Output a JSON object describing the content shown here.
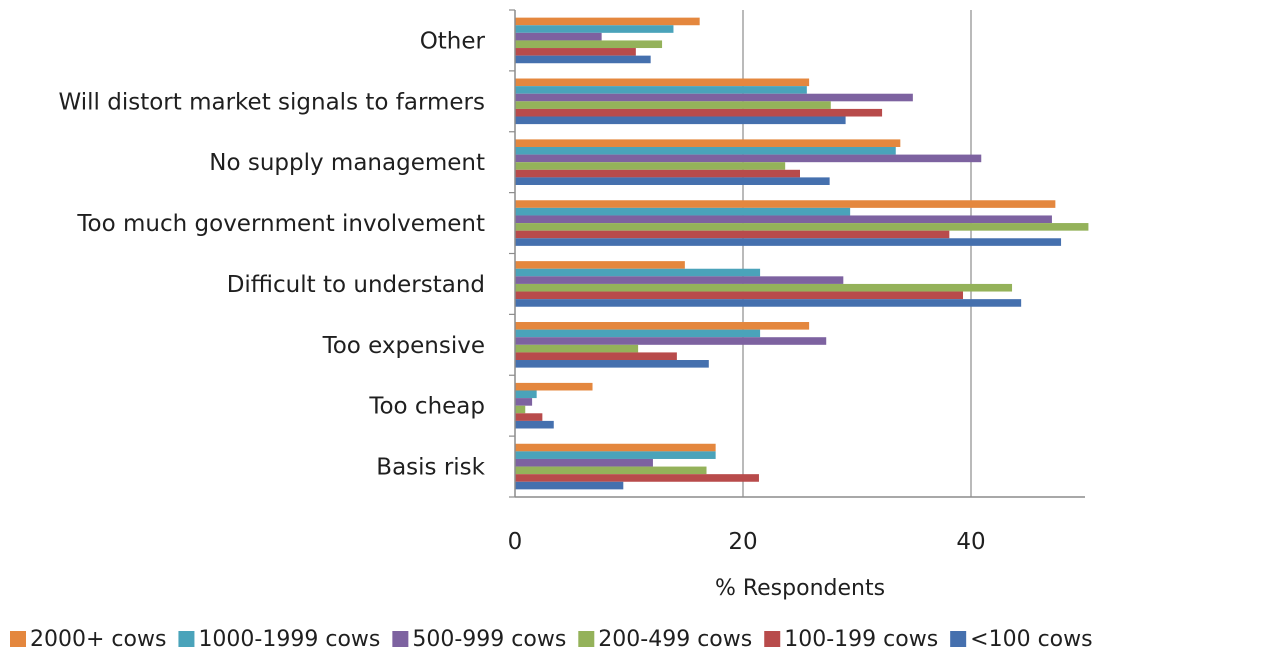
{
  "chart_data": {
    "type": "bar",
    "orientation": "horizontal",
    "categories": [
      "Basis risk",
      "Too cheap",
      "Too expensive",
      "Difficult to understand",
      "Too much government involvement",
      "No supply management",
      "Will distort market signals to farmers",
      "Other"
    ],
    "series": [
      {
        "name": "2000+ cows",
        "color": "#E4873E",
        "values": [
          17.6,
          6.8,
          25.8,
          14.9,
          47.4,
          33.8,
          25.8,
          16.2
        ]
      },
      {
        "name": "1000-1999 cows",
        "color": "#4AA3BA",
        "values": [
          17.6,
          1.9,
          21.5,
          21.5,
          29.4,
          33.4,
          25.6,
          13.9
        ]
      },
      {
        "name": "500-999 cows",
        "color": "#7D62A0",
        "values": [
          12.1,
          1.5,
          27.3,
          28.8,
          47.1,
          40.9,
          34.9,
          7.6
        ]
      },
      {
        "name": "200-499 cows",
        "color": "#94B25A",
        "values": [
          16.8,
          0.9,
          10.8,
          43.6,
          50.3,
          23.7,
          27.7,
          12.9
        ]
      },
      {
        "name": "100-199 cows",
        "color": "#B84B4B",
        "values": [
          21.4,
          2.4,
          14.2,
          39.3,
          38.1,
          25.0,
          32.2,
          10.6
        ]
      },
      {
        "name": "<100 cows",
        "color": "#4570AE",
        "values": [
          9.5,
          3.4,
          17.0,
          44.4,
          47.9,
          27.6,
          29.0,
          11.9
        ]
      }
    ],
    "xlabel": "% Respondents",
    "ylabel": "",
    "xlim": [
      0,
      50
    ],
    "xticks": [
      "0",
      "20",
      "40"
    ],
    "grid": true,
    "legend_position": "bottom"
  }
}
